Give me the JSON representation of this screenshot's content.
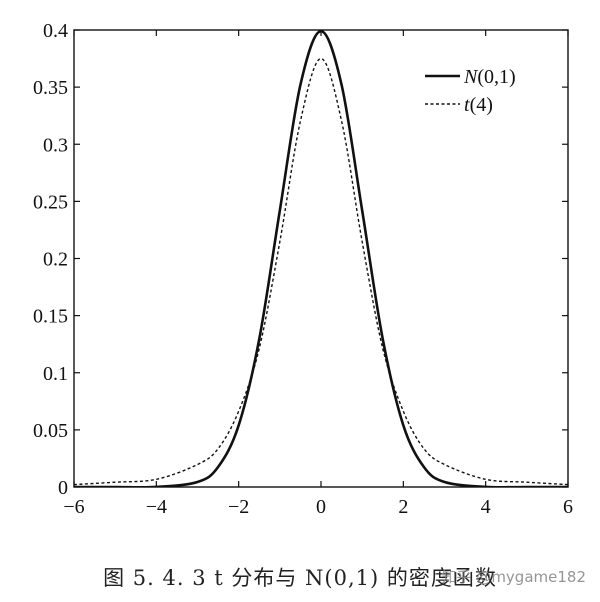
{
  "chart_data": {
    "type": "line",
    "title": "",
    "xlabel": "",
    "ylabel": "",
    "xlim": [
      -6,
      6
    ],
    "ylim": [
      0,
      0.4
    ],
    "xticks": [
      -6,
      -4,
      -2,
      0,
      2,
      4,
      6
    ],
    "xtick_labels": [
      "−6",
      "−4",
      "−2",
      "0",
      "2",
      "4",
      "6"
    ],
    "yticks": [
      0,
      0.05,
      0.1,
      0.15,
      0.2,
      0.25,
      0.3,
      0.35,
      0.4
    ],
    "ytick_labels": [
      "0",
      "0.05",
      "0.1",
      "0.15",
      "0.2",
      "0.25",
      "0.3",
      "0.35",
      "0.4"
    ],
    "grid": false,
    "legend_position": "top-right",
    "x": [
      -6,
      -5,
      -4,
      -3,
      -2.5,
      -2,
      -1.5,
      -1,
      -0.5,
      0,
      0.5,
      1,
      1.5,
      2,
      2.5,
      3,
      4,
      5,
      6
    ],
    "series": [
      {
        "name": "N(0,1)",
        "style": "solid",
        "values": [
          0.0,
          0.0,
          0.0001,
          0.0044,
          0.0175,
          0.054,
          0.1295,
          0.242,
          0.352,
          0.399,
          0.352,
          0.242,
          0.1295,
          0.054,
          0.0175,
          0.0044,
          0.0001,
          0.0,
          0.0
        ]
      },
      {
        "name": "t(4)",
        "style": "dashed",
        "values": [
          0.0021,
          0.0042,
          0.0067,
          0.0197,
          0.0335,
          0.0663,
          0.1212,
          0.2147,
          0.3203,
          0.375,
          0.3203,
          0.2147,
          0.1212,
          0.0663,
          0.0335,
          0.0197,
          0.0067,
          0.0042,
          0.0021
        ]
      }
    ]
  },
  "legend": [
    {
      "prefix": "N",
      "rest": "(0,1)"
    },
    {
      "prefix": "t",
      "rest": "(4)"
    }
  ],
  "caption": "图 5. 4. 3    t 分布与 N(0,1) 的密度函数",
  "watermark": "知乎 @mygame182"
}
